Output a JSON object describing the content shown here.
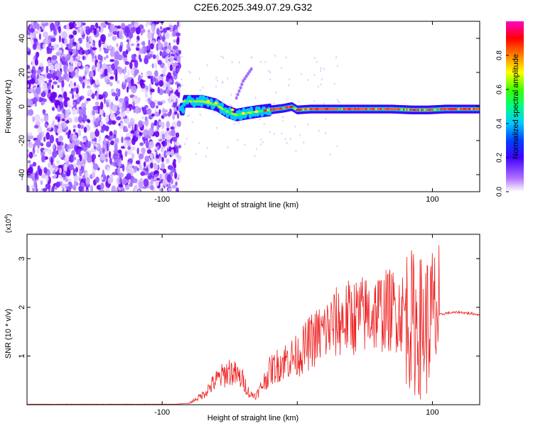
{
  "title": "C2E6.2025.349.07.29.G32",
  "chart_data": [
    {
      "type": "heatmap",
      "name": "spectrogram",
      "xlabel": "Height of straight line (km)",
      "ylabel": "Frequency (Hz)",
      "xlim": [
        -200,
        135
      ],
      "ylim": [
        -50,
        50
      ],
      "xticks": [
        -100,
        0,
        100
      ],
      "xtick_labels": [
        "-100",
        "",
        "100"
      ],
      "yticks": [
        -40,
        -20,
        0,
        20,
        40
      ],
      "ytick_labels": [
        "-40",
        "-20",
        "0",
        "20",
        "40"
      ],
      "noise_region": {
        "x": [
          -200,
          -87
        ],
        "y": [
          -50,
          50
        ]
      },
      "signal_track": [
        [
          -84,
          3
        ],
        [
          -70,
          3
        ],
        [
          -60,
          1
        ],
        [
          -52,
          -3
        ],
        [
          -45,
          -5
        ],
        [
          -38,
          -4
        ],
        [
          -30,
          -3
        ],
        [
          -20,
          -2
        ],
        [
          -10,
          -1
        ],
        [
          -4,
          0
        ],
        [
          0,
          -2
        ],
        [
          10,
          -1.5
        ],
        [
          30,
          -1.5
        ],
        [
          50,
          -1.5
        ],
        [
          70,
          -1.5
        ],
        [
          85,
          -2
        ],
        [
          97,
          -2
        ],
        [
          110,
          -1.5
        ],
        [
          125,
          -1.5
        ],
        [
          135,
          -1.5
        ]
      ],
      "secondary_feature": [
        [
          -45,
          5
        ],
        [
          -40,
          15
        ],
        [
          -34,
          22
        ]
      ],
      "colorbar": {
        "label": "Normalized spectral amplitude",
        "range": [
          0,
          1
        ],
        "ticks": [
          0.0,
          0.2,
          0.4,
          0.6,
          0.8
        ],
        "tick_labels": [
          "0.0",
          "0.2",
          "0.4",
          "0.6",
          "0.8"
        ],
        "colors": [
          "#ffffff",
          "#8000ff",
          "#0000ff",
          "#00ffff",
          "#00ff00",
          "#ffff00",
          "#ff8000",
          "#ff0000",
          "#ff00ff"
        ]
      }
    },
    {
      "type": "line",
      "name": "snr",
      "xlabel": "Height of straight line (km)",
      "ylabel": "SNR (10 * v/v)",
      "multiplier": "(x10",
      "multiplier_exp": "4",
      "multiplier_close": ")",
      "xlim": [
        -200,
        135
      ],
      "ylim": [
        0,
        3.5
      ],
      "xticks": [
        -100,
        0,
        100
      ],
      "xtick_labels": [
        "-100",
        "",
        "100"
      ],
      "yticks": [
        1,
        2,
        3
      ],
      "ytick_labels": [
        "1",
        "2",
        "3"
      ],
      "color": "#ee2222",
      "envelope": [
        [
          -200,
          0.01
        ],
        [
          -90,
          0.01
        ],
        [
          -80,
          0.03
        ],
        [
          -70,
          0.2
        ],
        [
          -60,
          0.5
        ],
        [
          -50,
          0.7
        ],
        [
          -40,
          0.5
        ],
        [
          -35,
          0.2
        ],
        [
          -30,
          0.2
        ],
        [
          -20,
          0.7
        ],
        [
          -10,
          0.9
        ],
        [
          0,
          1.0
        ],
        [
          10,
          1.3
        ],
        [
          20,
          1.5
        ],
        [
          30,
          1.7
        ],
        [
          40,
          1.8
        ],
        [
          50,
          1.85
        ],
        [
          60,
          1.9
        ],
        [
          70,
          1.95
        ],
        [
          80,
          1.9
        ],
        [
          85,
          1.7
        ],
        [
          90,
          1.6
        ],
        [
          95,
          1.6
        ],
        [
          100,
          1.8
        ],
        [
          110,
          1.88
        ],
        [
          120,
          1.9
        ],
        [
          135,
          1.85
        ]
      ]
    }
  ],
  "colors": {
    "line": "#ee2222",
    "axis": "#000000"
  }
}
